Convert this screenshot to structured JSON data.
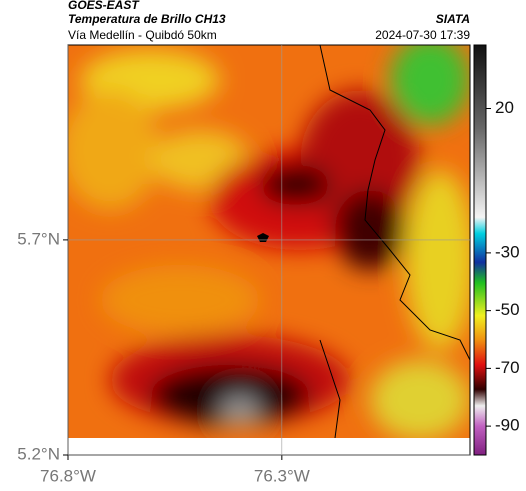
{
  "header": {
    "source": "GOES-EAST",
    "product": "Temperatura de Brillo CH13",
    "agency": "SIATA",
    "route": "Vía Medellín - Quibdó 50km",
    "timestamp": "2024-07-30 17:39"
  },
  "map": {
    "xlim": [
      -76.8,
      -75.86
    ],
    "ylim": [
      5.2,
      6.153
    ],
    "xticks": [
      {
        "value": -76.8,
        "label": "76.8°W"
      },
      {
        "value": -76.3,
        "label": "76.3°W"
      }
    ],
    "yticks": [
      {
        "value": 5.2,
        "label": "5.2°N"
      },
      {
        "value": 5.7,
        "label": "5.7°N"
      }
    ],
    "grid": true
  },
  "colorbar": {
    "clim": [
      -100,
      42
    ],
    "ticks": [
      20,
      -30,
      -50,
      -70,
      -90
    ]
  }
}
